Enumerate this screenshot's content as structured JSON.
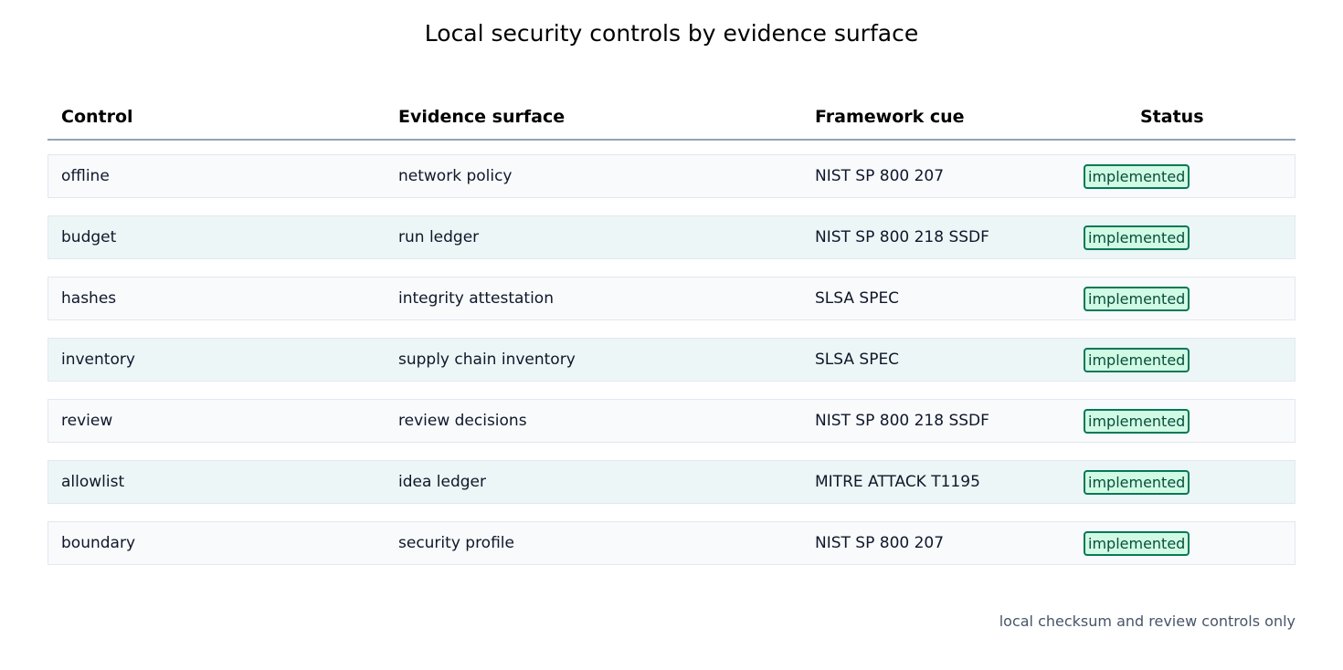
{
  "title": "Local security controls by evidence surface",
  "colors": {
    "row_even": "#f8fafc",
    "row_odd": "#ecf6f6",
    "badge_border": "#047857",
    "badge_fill": "#d1fae5",
    "header_rule": "#94a3b8"
  },
  "chart_data": {
    "type": "table",
    "title": "Local security controls by evidence surface",
    "columns": [
      "Control",
      "Evidence surface",
      "Framework cue",
      "Status"
    ],
    "rows": [
      {
        "control": "offline",
        "evidence_surface": "network policy",
        "framework_cue": "NIST SP 800 207",
        "status": "implemented"
      },
      {
        "control": "budget",
        "evidence_surface": "run ledger",
        "framework_cue": "NIST SP 800 218 SSDF",
        "status": "implemented"
      },
      {
        "control": "hashes",
        "evidence_surface": "integrity attestation",
        "framework_cue": "SLSA SPEC",
        "status": "implemented"
      },
      {
        "control": "inventory",
        "evidence_surface": "supply chain inventory",
        "framework_cue": "SLSA SPEC",
        "status": "implemented"
      },
      {
        "control": "review",
        "evidence_surface": "review decisions",
        "framework_cue": "NIST SP 800 218 SSDF",
        "status": "implemented"
      },
      {
        "control": "allowlist",
        "evidence_surface": "idea ledger",
        "framework_cue": "MITRE ATTACK T1195",
        "status": "implemented"
      },
      {
        "control": "boundary",
        "evidence_surface": "security profile",
        "framework_cue": "NIST SP 800 207",
        "status": "implemented"
      }
    ],
    "footnote": "local checksum and review controls only"
  }
}
